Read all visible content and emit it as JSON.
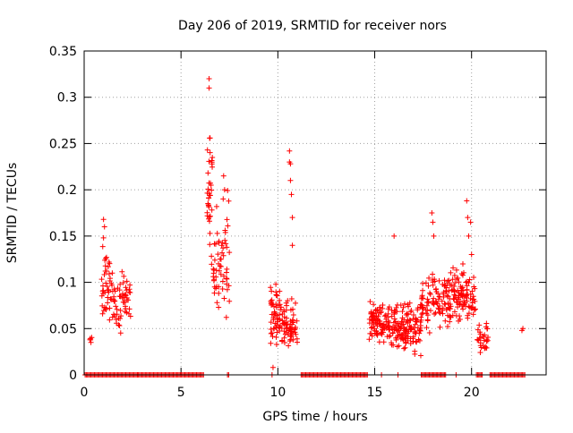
{
  "chart_data": {
    "type": "scatter",
    "title": "Day 206 of 2019, SRMTID for receiver nors",
    "xlabel": "GPS time / hours",
    "ylabel": "SRMTID / TECUs",
    "xlim": [
      0,
      23.85
    ],
    "ylim": [
      0,
      0.35
    ],
    "xticks": [
      0,
      5,
      10,
      15,
      20
    ],
    "yticks": [
      0,
      0.05,
      0.1,
      0.15,
      0.2,
      0.25,
      0.3,
      0.35
    ],
    "ytick_labels": [
      "0",
      "0.05",
      "0.1",
      "0.15",
      "0.2",
      "0.25",
      "0.3",
      "0.35"
    ],
    "grid": true,
    "marker": "+",
    "color": "#ff0000",
    "clusters": [
      {
        "x_range": [
          0.3,
          0.45
        ],
        "y_range": [
          0.03,
          0.055
        ],
        "count": 4
      },
      {
        "x_range": [
          0.9,
          1.5
        ],
        "y_range": [
          0.04,
          0.17
        ],
        "count": 45
      },
      {
        "x_range": [
          1.5,
          1.9
        ],
        "y_range": [
          0.03,
          0.13
        ],
        "count": 25
      },
      {
        "x_range": [
          1.95,
          2.45
        ],
        "y_range": [
          0.04,
          0.13
        ],
        "count": 30
      },
      {
        "x_range": [
          6.35,
          6.65
        ],
        "y_range": [
          0.07,
          0.32
        ],
        "count": 35
      },
      {
        "x_range": [
          6.65,
          7.5
        ],
        "y_range": [
          0.035,
          0.22
        ],
        "count": 60
      },
      {
        "x_range": [
          9.6,
          10.2
        ],
        "y_range": [
          0.02,
          0.12
        ],
        "count": 55
      },
      {
        "x_range": [
          10.2,
          11.0
        ],
        "y_range": [
          0.02,
          0.1
        ],
        "count": 65
      },
      {
        "x_range": [
          14.7,
          15.6
        ],
        "y_range": [
          0.025,
          0.095
        ],
        "count": 80
      },
      {
        "x_range": [
          15.6,
          16.6
        ],
        "y_range": [
          0.02,
          0.09
        ],
        "count": 85
      },
      {
        "x_range": [
          16.6,
          17.4
        ],
        "y_range": [
          0.015,
          0.09
        ],
        "count": 70
      },
      {
        "x_range": [
          17.4,
          18.3
        ],
        "y_range": [
          0.04,
          0.13
        ],
        "count": 55
      },
      {
        "x_range": [
          18.3,
          19.3
        ],
        "y_range": [
          0.04,
          0.13
        ],
        "count": 75
      },
      {
        "x_range": [
          19.3,
          20.2
        ],
        "y_range": [
          0.04,
          0.13
        ],
        "count": 70
      },
      {
        "x_range": [
          20.3,
          20.85
        ],
        "y_range": [
          0.02,
          0.065
        ],
        "count": 30
      }
    ],
    "outliers": [
      {
        "x": 6.45,
        "y": 0.32
      },
      {
        "x": 6.45,
        "y": 0.31
      },
      {
        "x": 6.5,
        "y": 0.256
      },
      {
        "x": 6.55,
        "y": 0.205
      },
      {
        "x": 7.2,
        "y": 0.215
      },
      {
        "x": 7.25,
        "y": 0.2
      },
      {
        "x": 10.6,
        "y": 0.242
      },
      {
        "x": 10.6,
        "y": 0.23
      },
      {
        "x": 10.65,
        "y": 0.228
      },
      {
        "x": 10.65,
        "y": 0.21
      },
      {
        "x": 10.7,
        "y": 0.195
      },
      {
        "x": 10.75,
        "y": 0.17
      },
      {
        "x": 10.75,
        "y": 0.14
      },
      {
        "x": 1.0,
        "y": 0.168
      },
      {
        "x": 1.05,
        "y": 0.16
      },
      {
        "x": 1.0,
        "y": 0.148
      },
      {
        "x": 16.0,
        "y": 0.15
      },
      {
        "x": 17.95,
        "y": 0.175
      },
      {
        "x": 18.0,
        "y": 0.165
      },
      {
        "x": 18.05,
        "y": 0.15
      },
      {
        "x": 19.75,
        "y": 0.188
      },
      {
        "x": 19.8,
        "y": 0.17
      },
      {
        "x": 19.95,
        "y": 0.165
      },
      {
        "x": 19.85,
        "y": 0.15
      },
      {
        "x": 20.0,
        "y": 0.13
      },
      {
        "x": 22.6,
        "y": 0.048
      },
      {
        "x": 22.65,
        "y": 0.05
      },
      {
        "x": 9.75,
        "y": 0.008
      },
      {
        "x": 0.35,
        "y": 0.035
      }
    ],
    "zero_ranges": [
      [
        0.05,
        2.8
      ],
      [
        2.8,
        6.2
      ],
      [
        7.4,
        7.5
      ],
      [
        9.7,
        9.75
      ],
      [
        11.2,
        14.65
      ],
      [
        15.35,
        15.4
      ],
      [
        16.2,
        16.25
      ],
      [
        17.4,
        18.7
      ],
      [
        19.2,
        19.25
      ],
      [
        20.25,
        20.6
      ],
      [
        20.95,
        22.8
      ]
    ]
  }
}
